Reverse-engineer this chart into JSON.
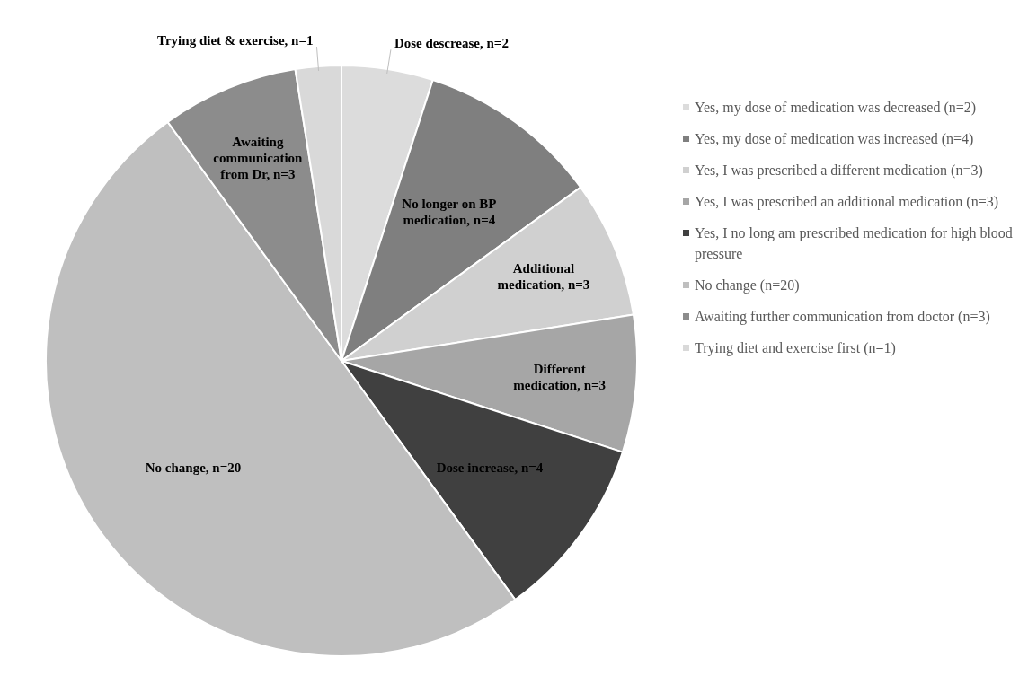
{
  "chart_data": {
    "type": "pie",
    "categories": [
      "Yes, my dose of medication was decreased (n=2)",
      "Yes, my dose of medication was increased (n=4)",
      "Yes, I was prescribed a different medication (n=3)",
      "Yes, I was prescribed an additional medication (n=3)",
      "Yes, I no long am prescribed medication for high blood pressure",
      "No change (n=20)",
      "Awaiting further communication from doctor (n=3)",
      "Trying diet and exercise first (n=1)"
    ],
    "values": [
      2,
      4,
      3,
      3,
      4,
      20,
      3,
      1
    ],
    "colors": [
      "#dcdcdc",
      "#7f7f7f",
      "#d0d0d0",
      "#a6a6a6",
      "#404040",
      "#bfbfbf",
      "#8c8c8c",
      "#d9d9d9"
    ],
    "value_labels": [
      "Dose descrease, n=2",
      "No longer on BP medication, n=4",
      "Additional medication, n=3",
      "Different medication, n=3",
      "Dose increase, n=4",
      "No change, n=20",
      "Awaiting communication from Dr, n=3",
      "Trying diet & exercise, n=1"
    ],
    "legend": "right"
  }
}
